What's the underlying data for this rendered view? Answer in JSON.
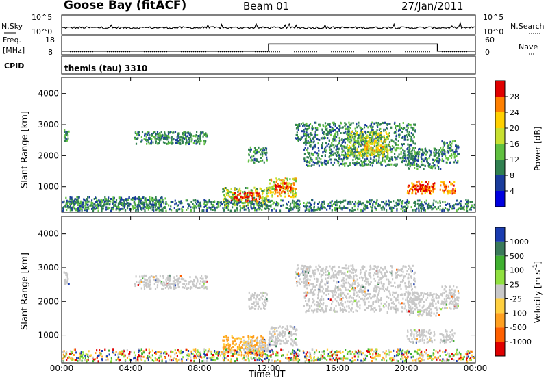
{
  "header": {
    "station": "Goose Bay (fitACF)",
    "beam": "Beam 01",
    "date": "27/Jan/2011"
  },
  "chart_data": [
    {
      "type": "line",
      "panel": "noise",
      "left_label": "N.Sky",
      "right_label": "N.Search",
      "left_ticks": [
        "10^5",
        "10^0"
      ],
      "right_ticks": [
        "10^5",
        "10^0"
      ],
      "x_range": [
        0,
        24
      ]
    },
    {
      "type": "line",
      "panel": "frequency",
      "left_label_1": "Freq.",
      "left_label_2": "[MHz]",
      "right_label": "Nave",
      "left_ticks": [
        "18",
        "8"
      ],
      "right_ticks": [
        "60",
        "0"
      ],
      "freq_step": {
        "x": [
          0,
          12,
          12,
          21.8,
          21.8,
          24
        ],
        "y": [
          10,
          10,
          14,
          14,
          10,
          10
        ]
      },
      "nave_step": {
        "x": [
          0,
          24
        ],
        "y": [
          10,
          10
        ]
      }
    },
    {
      "type": "table",
      "panel": "cpid",
      "label": "CPID",
      "text": "themis (tau) 3310"
    },
    {
      "type": "heatmap",
      "panel": "power",
      "ylabel": "Slant Range [km]",
      "yticks": [
        "4000",
        "3000",
        "2000",
        "1000"
      ],
      "ylim": [
        200,
        4500
      ],
      "colorbar_label": "Power [dB]",
      "colorbar_ticks": [
        "28",
        "24",
        "20",
        "16",
        "12",
        "8",
        "4"
      ],
      "colorbar_colors": [
        "#e00000",
        "#ff8000",
        "#ffd000",
        "#c8e030",
        "#60c040",
        "#308050",
        "#1a3c9c",
        "#0000e0"
      ],
      "x_range": [
        0,
        24
      ],
      "regions": [
        {
          "x": [
            0.1,
            0.4
          ],
          "y": [
            2500,
            2900
          ],
          "level": 1
        },
        {
          "x": [
            4.2,
            7.5
          ],
          "y": [
            2400,
            2800
          ],
          "level": 1
        },
        {
          "x": [
            5.0,
            6.2
          ],
          "y": [
            2550,
            2700
          ],
          "level": 2
        },
        {
          "x": [
            6.7,
            8.4
          ],
          "y": [
            2400,
            2800
          ],
          "level": 1
        },
        {
          "x": [
            10.8,
            11.9
          ],
          "y": [
            1800,
            2300
          ],
          "level": 1
        },
        {
          "x": [
            9.3,
            12.0
          ],
          "y": [
            400,
            1000
          ],
          "level": 3
        },
        {
          "x": [
            9.8,
            11.5
          ],
          "y": [
            550,
            850
          ],
          "level": 6
        },
        {
          "x": [
            12.0,
            13.6
          ],
          "y": [
            700,
            1300
          ],
          "level": 4
        },
        {
          "x": [
            12.3,
            13.3
          ],
          "y": [
            850,
            1150
          ],
          "level": 6
        },
        {
          "x": [
            13.5,
            14.2
          ],
          "y": [
            2500,
            3100
          ],
          "level": 1
        },
        {
          "x": [
            14.0,
            20.5
          ],
          "y": [
            1700,
            3100
          ],
          "level": 1
        },
        {
          "x": [
            16.5,
            19.0
          ],
          "y": [
            2000,
            2800
          ],
          "level": 3
        },
        {
          "x": [
            17.5,
            18.7
          ],
          "y": [
            2100,
            2500
          ],
          "level": 4
        },
        {
          "x": [
            20.0,
            22.0
          ],
          "y": [
            1600,
            2300
          ],
          "level": 1
        },
        {
          "x": [
            20.0,
            21.6
          ],
          "y": [
            800,
            1200
          ],
          "level": 5
        },
        {
          "x": [
            20.3,
            21.3
          ],
          "y": [
            900,
            1100
          ],
          "level": 6
        },
        {
          "x": [
            21.9,
            22.8
          ],
          "y": [
            800,
            1200
          ],
          "level": 5
        },
        {
          "x": [
            22.0,
            23.0
          ],
          "y": [
            1800,
            2500
          ],
          "level": 2
        },
        {
          "x": [
            0.0,
            24.0
          ],
          "y": [
            250,
            600
          ],
          "level": 1
        },
        {
          "x": [
            0.2,
            6.0
          ],
          "y": [
            300,
            700
          ],
          "level": 2
        }
      ]
    },
    {
      "type": "heatmap",
      "panel": "velocity",
      "ylabel": "Slant Range [km]",
      "yticks": [
        "4000",
        "3000",
        "2000",
        "1000"
      ],
      "ylim": [
        200,
        4500
      ],
      "colorbar_label": "Velocity [m s",
      "colorbar_sup": "-1",
      "colorbar_close": "]",
      "colorbar_ticks": [
        "1000",
        "500",
        "100",
        "25",
        "-25",
        "-100",
        "-500",
        "-1000"
      ],
      "colorbar_colors": [
        "#1a3cb0",
        "#3a7a5a",
        "#40b030",
        "#90e040",
        "#c8c8c8",
        "#ffd040",
        "#ffa020",
        "#ff6000",
        "#e00000"
      ],
      "x_range": [
        0,
        24
      ],
      "regions": [
        {
          "x": [
            0.1,
            0.4
          ],
          "y": [
            2500,
            2900
          ],
          "level": "ground"
        },
        {
          "x": [
            4.2,
            8.4
          ],
          "y": [
            2400,
            2800
          ],
          "level": "ground"
        },
        {
          "x": [
            10.8,
            11.9
          ],
          "y": [
            1800,
            2300
          ],
          "level": "ground"
        },
        {
          "x": [
            9.3,
            11.8
          ],
          "y": [
            400,
            1000
          ],
          "level": "neg-slow"
        },
        {
          "x": [
            10.5,
            12.0
          ],
          "y": [
            550,
            900
          ],
          "level": "ground"
        },
        {
          "x": [
            12.0,
            13.6
          ],
          "y": [
            700,
            1300
          ],
          "level": "ground"
        },
        {
          "x": [
            13.5,
            14.2
          ],
          "y": [
            2500,
            3100
          ],
          "level": "ground"
        },
        {
          "x": [
            14.0,
            20.5
          ],
          "y": [
            1700,
            3100
          ],
          "level": "ground"
        },
        {
          "x": [
            20.0,
            22.0
          ],
          "y": [
            1600,
            2300
          ],
          "level": "ground"
        },
        {
          "x": [
            20.0,
            21.6
          ],
          "y": [
            800,
            1200
          ],
          "level": "ground"
        },
        {
          "x": [
            21.9,
            22.8
          ],
          "y": [
            800,
            1200
          ],
          "level": "ground"
        },
        {
          "x": [
            22.0,
            23.0
          ],
          "y": [
            1800,
            2500
          ],
          "level": "ground"
        },
        {
          "x": [
            0.0,
            24.0
          ],
          "y": [
            250,
            600
          ],
          "level": "mixed"
        }
      ]
    }
  ],
  "x_axis": {
    "label": "Time UT",
    "ticks": [
      "00:00",
      "04:00",
      "08:00",
      "12:00",
      "16:00",
      "20:00",
      "00:00"
    ],
    "tick_values": [
      0,
      4,
      8,
      12,
      16,
      20,
      24
    ]
  }
}
